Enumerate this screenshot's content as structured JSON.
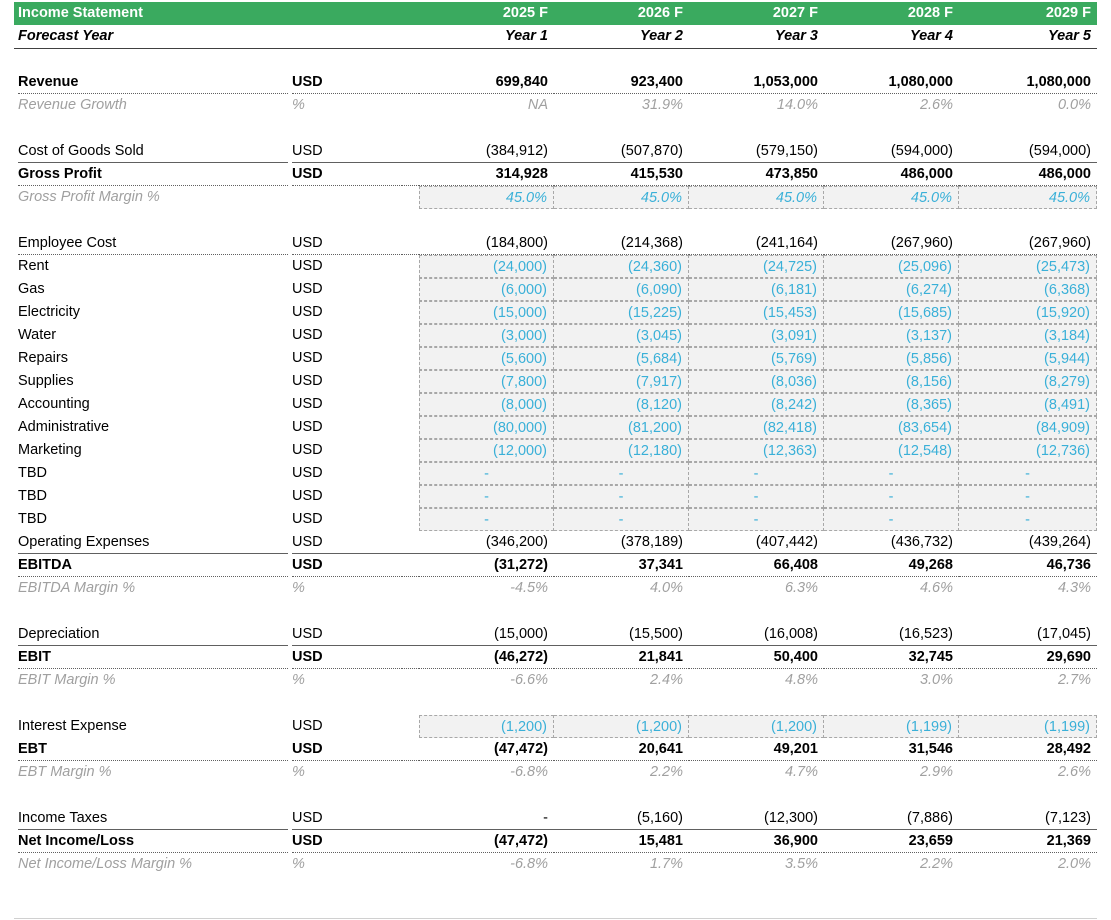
{
  "header": {
    "title": "Income Statement",
    "years": [
      "2025 F",
      "2026 F",
      "2027 F",
      "2028 F",
      "2029 F"
    ],
    "forecast_label": "Forecast Year",
    "year_labels": [
      "Year 1",
      "Year 2",
      "Year 3",
      "Year 4",
      "Year 5"
    ]
  },
  "rows": {
    "revenue": {
      "label": "Revenue",
      "unit": "USD",
      "values": [
        "699,840",
        "923,400",
        "1,053,000",
        "1,080,000",
        "1,080,000"
      ]
    },
    "revenue_growth": {
      "label": "Revenue Growth",
      "unit": "%",
      "values": [
        "NA",
        "31.9%",
        "14.0%",
        "2.6%",
        "0.0%"
      ]
    },
    "cogs": {
      "label": "Cost of Goods Sold",
      "unit": "USD",
      "values": [
        "(384,912)",
        "(507,870)",
        "(579,150)",
        "(594,000)",
        "(594,000)"
      ]
    },
    "gross_profit": {
      "label": "Gross Profit",
      "unit": "USD",
      "values": [
        "314,928",
        "415,530",
        "473,850",
        "486,000",
        "486,000"
      ]
    },
    "gross_margin": {
      "label": "Gross Profit Margin %",
      "unit": "",
      "values": [
        "45.0%",
        "45.0%",
        "45.0%",
        "45.0%",
        "45.0%"
      ]
    },
    "employee_cost": {
      "label": "Employee Cost",
      "unit": "USD",
      "values": [
        "(184,800)",
        "(214,368)",
        "(241,164)",
        "(267,960)",
        "(267,960)"
      ]
    },
    "rent": {
      "label": "Rent",
      "unit": "USD",
      "values": [
        "(24,000)",
        "(24,360)",
        "(24,725)",
        "(25,096)",
        "(25,473)"
      ]
    },
    "gas": {
      "label": "Gas",
      "unit": "USD",
      "values": [
        "(6,000)",
        "(6,090)",
        "(6,181)",
        "(6,274)",
        "(6,368)"
      ]
    },
    "electricity": {
      "label": "Electricity",
      "unit": "USD",
      "values": [
        "(15,000)",
        "(15,225)",
        "(15,453)",
        "(15,685)",
        "(15,920)"
      ]
    },
    "water": {
      "label": "Water",
      "unit": "USD",
      "values": [
        "(3,000)",
        "(3,045)",
        "(3,091)",
        "(3,137)",
        "(3,184)"
      ]
    },
    "repairs": {
      "label": "Repairs",
      "unit": "USD",
      "values": [
        "(5,600)",
        "(5,684)",
        "(5,769)",
        "(5,856)",
        "(5,944)"
      ]
    },
    "supplies": {
      "label": "Supplies",
      "unit": "USD",
      "values": [
        "(7,800)",
        "(7,917)",
        "(8,036)",
        "(8,156)",
        "(8,279)"
      ]
    },
    "accounting": {
      "label": "Accounting",
      "unit": "USD",
      "values": [
        "(8,000)",
        "(8,120)",
        "(8,242)",
        "(8,365)",
        "(8,491)"
      ]
    },
    "administrative": {
      "label": "Administrative",
      "unit": "USD",
      "values": [
        "(80,000)",
        "(81,200)",
        "(82,418)",
        "(83,654)",
        "(84,909)"
      ]
    },
    "marketing": {
      "label": "Marketing",
      "unit": "USD",
      "values": [
        "(12,000)",
        "(12,180)",
        "(12,363)",
        "(12,548)",
        "(12,736)"
      ]
    },
    "tbd1": {
      "label": "TBD",
      "unit": "USD",
      "values": [
        "-",
        "-",
        "-",
        "-",
        "-"
      ]
    },
    "tbd2": {
      "label": "TBD",
      "unit": "USD",
      "values": [
        "-",
        "-",
        "-",
        "-",
        "-"
      ]
    },
    "tbd3": {
      "label": "TBD",
      "unit": "USD",
      "values": [
        "-",
        "-",
        "-",
        "-",
        "-"
      ]
    },
    "opex": {
      "label": "Operating Expenses",
      "unit": "USD",
      "values": [
        "(346,200)",
        "(378,189)",
        "(407,442)",
        "(436,732)",
        "(439,264)"
      ]
    },
    "ebitda": {
      "label": "EBITDA",
      "unit": "USD",
      "values": [
        "(31,272)",
        "37,341",
        "66,408",
        "49,268",
        "46,736"
      ]
    },
    "ebitda_margin": {
      "label": "EBITDA Margin %",
      "unit": "%",
      "values": [
        "-4.5%",
        "4.0%",
        "6.3%",
        "4.6%",
        "4.3%"
      ]
    },
    "depreciation": {
      "label": "Depreciation",
      "unit": "USD",
      "values": [
        "(15,000)",
        "(15,500)",
        "(16,008)",
        "(16,523)",
        "(17,045)"
      ]
    },
    "ebit": {
      "label": "EBIT",
      "unit": "USD",
      "values": [
        "(46,272)",
        "21,841",
        "50,400",
        "32,745",
        "29,690"
      ]
    },
    "ebit_margin": {
      "label": "EBIT Margin %",
      "unit": "%",
      "values": [
        "-6.6%",
        "2.4%",
        "4.8%",
        "3.0%",
        "2.7%"
      ]
    },
    "interest": {
      "label": "Interest Expense",
      "unit": "USD",
      "values": [
        "(1,200)",
        "(1,200)",
        "(1,200)",
        "(1,199)",
        "(1,199)"
      ]
    },
    "ebt": {
      "label": "EBT",
      "unit": "USD",
      "values": [
        "(47,472)",
        "20,641",
        "49,201",
        "31,546",
        "28,492"
      ]
    },
    "ebt_margin": {
      "label": "EBT Margin %",
      "unit": "%",
      "values": [
        "-6.8%",
        "2.2%",
        "4.7%",
        "2.9%",
        "2.6%"
      ]
    },
    "taxes": {
      "label": "Income Taxes",
      "unit": "USD",
      "values": [
        "-",
        "(5,160)",
        "(12,300)",
        "(7,886)",
        "(7,123)"
      ]
    },
    "net_income": {
      "label": "Net Income/Loss",
      "unit": "USD",
      "values": [
        "(47,472)",
        "15,481",
        "36,900",
        "23,659",
        "21,369"
      ]
    },
    "net_margin": {
      "label": "Net Income/Loss Margin %",
      "unit": "%",
      "values": [
        "-6.8%",
        "1.7%",
        "3.5%",
        "2.2%",
        "2.0%"
      ]
    }
  },
  "colors": {
    "header_green": "#3aaa5f",
    "input_blue": "#3ab0d8",
    "input_fill": "#f2f2f2",
    "muted_grey": "#a0a0a0"
  }
}
